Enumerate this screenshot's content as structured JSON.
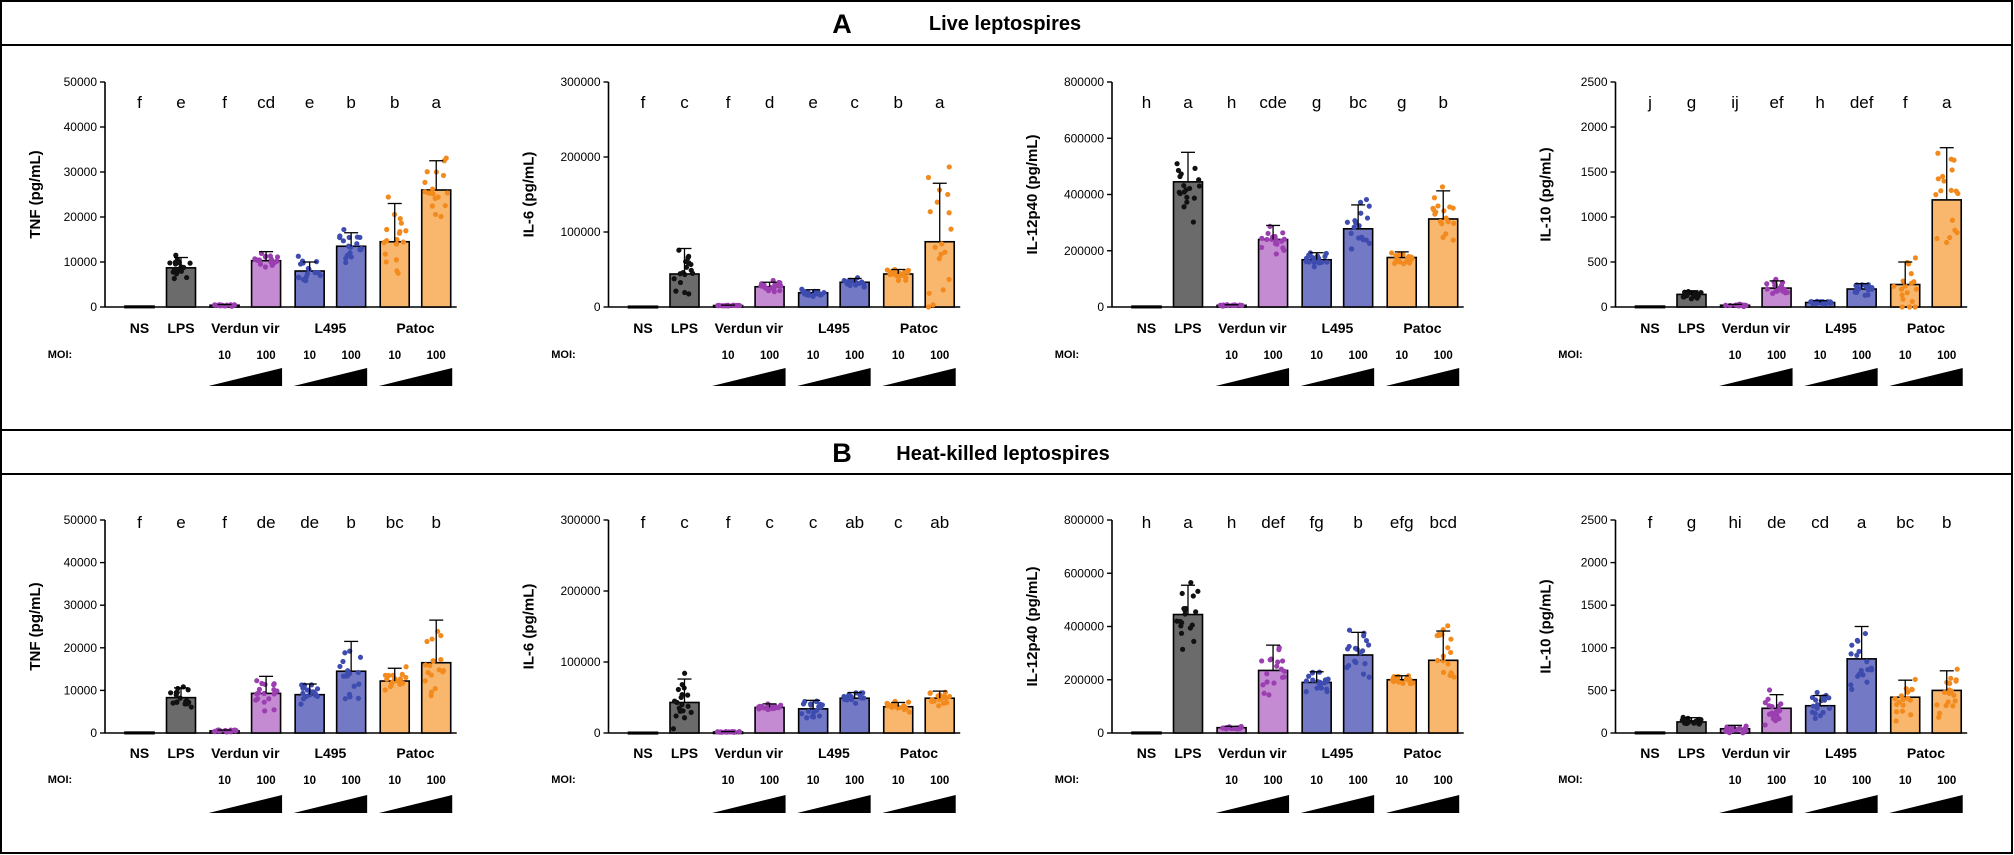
{
  "panels": [
    {
      "letter": "A",
      "title": "Live leptospires"
    },
    {
      "letter": "B",
      "title": "Heat-killed leptospires"
    }
  ],
  "moi_axis": {
    "label": "MOI:",
    "low": "10",
    "high": "100"
  },
  "colors": {
    "NS": "#b8b8b8",
    "LPS": "#6b6b6b",
    "Verdun vir": "#c48ad2",
    "L495": "#7479c6",
    "Patoc": "#f8b76d",
    "NS_dot": "#a8a8a8",
    "LPS_dot": "#111111",
    "Verdun vir_dot": "#9b3fb0",
    "L495_dot": "#3d4cae",
    "Patoc_dot": "#f28a1e"
  },
  "chart_data": [
    {
      "panel": "A",
      "type": "bar",
      "ylabel": "TNF (pg/mL)",
      "ylim": [
        0,
        50000
      ],
      "yticks": [
        0,
        10000,
        20000,
        30000,
        40000,
        50000
      ],
      "groups": [
        "NS",
        "LPS",
        "Verdun vir",
        "L495",
        "Patoc"
      ],
      "bars": [
        {
          "group": "NS",
          "moi": null,
          "value": 200,
          "sd": 0,
          "letter": "f"
        },
        {
          "group": "LPS",
          "moi": null,
          "value": 8700,
          "sd": 2300,
          "letter": "e"
        },
        {
          "group": "Verdun vir",
          "moi": 10,
          "value": 400,
          "sd": 150,
          "letter": "f"
        },
        {
          "group": "Verdun vir",
          "moi": 100,
          "value": 10300,
          "sd": 2000,
          "letter": "cd"
        },
        {
          "group": "L495",
          "moi": 10,
          "value": 8000,
          "sd": 2000,
          "letter": "e"
        },
        {
          "group": "L495",
          "moi": 100,
          "value": 13500,
          "sd": 3000,
          "letter": "b"
        },
        {
          "group": "Patoc",
          "moi": 10,
          "value": 14500,
          "sd": 8500,
          "letter": "b"
        },
        {
          "group": "Patoc",
          "moi": 100,
          "value": 26000,
          "sd": 6500,
          "letter": "a"
        }
      ]
    },
    {
      "panel": "A",
      "type": "bar",
      "ylabel": "IL-6 (pg/mL)",
      "ylim": [
        0,
        300000
      ],
      "yticks": [
        0,
        100000,
        200000,
        300000
      ],
      "groups": [
        "NS",
        "LPS",
        "Verdun vir",
        "L495",
        "Patoc"
      ],
      "bars": [
        {
          "group": "NS",
          "moi": null,
          "value": 1000,
          "sd": 0,
          "letter": "f"
        },
        {
          "group": "LPS",
          "moi": null,
          "value": 44000,
          "sd": 34000,
          "letter": "c"
        },
        {
          "group": "Verdun vir",
          "moi": 10,
          "value": 2000,
          "sd": 500,
          "letter": "f"
        },
        {
          "group": "Verdun vir",
          "moi": 100,
          "value": 27000,
          "sd": 6000,
          "letter": "d"
        },
        {
          "group": "L495",
          "moi": 10,
          "value": 19000,
          "sd": 4000,
          "letter": "e"
        },
        {
          "group": "L495",
          "moi": 100,
          "value": 33000,
          "sd": 5000,
          "letter": "c"
        },
        {
          "group": "Patoc",
          "moi": 10,
          "value": 44000,
          "sd": 6000,
          "letter": "b"
        },
        {
          "group": "Patoc",
          "moi": 100,
          "value": 87000,
          "sd": 78000,
          "letter": "a"
        }
      ]
    },
    {
      "panel": "A",
      "type": "bar",
      "ylabel": "IL-12p40 (pg/mL)",
      "ylim": [
        0,
        800000
      ],
      "yticks": [
        0,
        200000,
        400000,
        600000,
        800000
      ],
      "groups": [
        "NS",
        "LPS",
        "Verdun vir",
        "L495",
        "Patoc"
      ],
      "bars": [
        {
          "group": "NS",
          "moi": null,
          "value": 3000,
          "sd": 0,
          "letter": "h"
        },
        {
          "group": "LPS",
          "moi": null,
          "value": 445000,
          "sd": 105000,
          "letter": "a"
        },
        {
          "group": "Verdun vir",
          "moi": 10,
          "value": 6000,
          "sd": 2000,
          "letter": "h"
        },
        {
          "group": "Verdun vir",
          "moi": 100,
          "value": 240000,
          "sd": 50000,
          "letter": "cde"
        },
        {
          "group": "L495",
          "moi": 10,
          "value": 168000,
          "sd": 25000,
          "letter": "g"
        },
        {
          "group": "L495",
          "moi": 100,
          "value": 278000,
          "sd": 85000,
          "letter": "bc"
        },
        {
          "group": "Patoc",
          "moi": 10,
          "value": 176000,
          "sd": 20000,
          "letter": "g"
        },
        {
          "group": "Patoc",
          "moi": 100,
          "value": 313000,
          "sd": 100000,
          "letter": "b"
        }
      ]
    },
    {
      "panel": "A",
      "type": "bar",
      "ylabel": "IL-10 (pg/mL)",
      "ylim": [
        0,
        2500
      ],
      "yticks": [
        0,
        500,
        1000,
        1500,
        2000,
        2500
      ],
      "groups": [
        "NS",
        "LPS",
        "Verdun vir",
        "L495",
        "Patoc"
      ],
      "bars": [
        {
          "group": "NS",
          "moi": null,
          "value": 10,
          "sd": 0,
          "letter": "j"
        },
        {
          "group": "LPS",
          "moi": null,
          "value": 140,
          "sd": 40,
          "letter": "g"
        },
        {
          "group": "Verdun vir",
          "moi": 10,
          "value": 20,
          "sd": 10,
          "letter": "ij"
        },
        {
          "group": "Verdun vir",
          "moi": 100,
          "value": 210,
          "sd": 80,
          "letter": "ef"
        },
        {
          "group": "L495",
          "moi": 10,
          "value": 50,
          "sd": 20,
          "letter": "h"
        },
        {
          "group": "L495",
          "moi": 100,
          "value": 200,
          "sd": 60,
          "letter": "def"
        },
        {
          "group": "Patoc",
          "moi": 10,
          "value": 250,
          "sd": 250,
          "letter": "f"
        },
        {
          "group": "Patoc",
          "moi": 100,
          "value": 1190,
          "sd": 580,
          "letter": "a"
        }
      ]
    },
    {
      "panel": "B",
      "type": "bar",
      "ylabel": "TNF (pg/mL)",
      "ylim": [
        0,
        50000
      ],
      "yticks": [
        0,
        10000,
        20000,
        30000,
        40000,
        50000
      ],
      "groups": [
        "NS",
        "LPS",
        "Verdun vir",
        "L495",
        "Patoc"
      ],
      "bars": [
        {
          "group": "NS",
          "moi": null,
          "value": 200,
          "sd": 0,
          "letter": "f"
        },
        {
          "group": "LPS",
          "moi": null,
          "value": 8300,
          "sd": 2300,
          "letter": "e"
        },
        {
          "group": "Verdun vir",
          "moi": 10,
          "value": 500,
          "sd": 200,
          "letter": "f"
        },
        {
          "group": "Verdun vir",
          "moi": 100,
          "value": 9300,
          "sd": 4000,
          "letter": "de"
        },
        {
          "group": "L495",
          "moi": 10,
          "value": 9000,
          "sd": 2500,
          "letter": "de"
        },
        {
          "group": "L495",
          "moi": 100,
          "value": 14500,
          "sd": 7000,
          "letter": "b"
        },
        {
          "group": "Patoc",
          "moi": 10,
          "value": 12200,
          "sd": 3000,
          "letter": "bc"
        },
        {
          "group": "Patoc",
          "moi": 100,
          "value": 16500,
          "sd": 10000,
          "letter": "b"
        }
      ]
    },
    {
      "panel": "B",
      "type": "bar",
      "ylabel": "IL-6 (pg/mL)",
      "ylim": [
        0,
        300000
      ],
      "yticks": [
        0,
        100000,
        200000,
        300000
      ],
      "groups": [
        "NS",
        "LPS",
        "Verdun vir",
        "L495",
        "Patoc"
      ],
      "bars": [
        {
          "group": "NS",
          "moi": null,
          "value": 1000,
          "sd": 0,
          "letter": "f"
        },
        {
          "group": "LPS",
          "moi": null,
          "value": 43000,
          "sd": 33000,
          "letter": "c"
        },
        {
          "group": "Verdun vir",
          "moi": 10,
          "value": 1500,
          "sd": 500,
          "letter": "f"
        },
        {
          "group": "Verdun vir",
          "moi": 100,
          "value": 36000,
          "sd": 5000,
          "letter": "c"
        },
        {
          "group": "L495",
          "moi": 10,
          "value": 34000,
          "sd": 12000,
          "letter": "c"
        },
        {
          "group": "L495",
          "moi": 100,
          "value": 49000,
          "sd": 8000,
          "letter": "ab"
        },
        {
          "group": "Patoc",
          "moi": 10,
          "value": 37000,
          "sd": 6000,
          "letter": "c"
        },
        {
          "group": "Patoc",
          "moi": 100,
          "value": 49000,
          "sd": 10000,
          "letter": "ab"
        }
      ]
    },
    {
      "panel": "B",
      "type": "bar",
      "ylabel": "IL-12p40 (pg/mL)",
      "ylim": [
        0,
        800000
      ],
      "yticks": [
        0,
        200000,
        400000,
        600000,
        800000
      ],
      "groups": [
        "NS",
        "LPS",
        "Verdun vir",
        "L495",
        "Patoc"
      ],
      "bars": [
        {
          "group": "NS",
          "moi": null,
          "value": 3000,
          "sd": 0,
          "letter": "h"
        },
        {
          "group": "LPS",
          "moi": null,
          "value": 445000,
          "sd": 110000,
          "letter": "a"
        },
        {
          "group": "Verdun vir",
          "moi": 10,
          "value": 20000,
          "sd": 5000,
          "letter": "h"
        },
        {
          "group": "Verdun vir",
          "moi": 100,
          "value": 235000,
          "sd": 95000,
          "letter": "def"
        },
        {
          "group": "L495",
          "moi": 10,
          "value": 190000,
          "sd": 40000,
          "letter": "fg"
        },
        {
          "group": "L495",
          "moi": 100,
          "value": 293000,
          "sd": 85000,
          "letter": "b"
        },
        {
          "group": "Patoc",
          "moi": 10,
          "value": 200000,
          "sd": 15000,
          "letter": "efg"
        },
        {
          "group": "Patoc",
          "moi": 100,
          "value": 273000,
          "sd": 110000,
          "letter": "bcd"
        }
      ]
    },
    {
      "panel": "B",
      "type": "bar",
      "ylabel": "IL-10 (pg/mL)",
      "ylim": [
        0,
        2500
      ],
      "yticks": [
        0,
        500,
        1000,
        1500,
        2000,
        2500
      ],
      "groups": [
        "NS",
        "LPS",
        "Verdun vir",
        "L495",
        "Patoc"
      ],
      "bars": [
        {
          "group": "NS",
          "moi": null,
          "value": 10,
          "sd": 0,
          "letter": "f"
        },
        {
          "group": "LPS",
          "moi": null,
          "value": 130,
          "sd": 50,
          "letter": "g"
        },
        {
          "group": "Verdun vir",
          "moi": 10,
          "value": 50,
          "sd": 40,
          "letter": "hi"
        },
        {
          "group": "Verdun vir",
          "moi": 100,
          "value": 290,
          "sd": 160,
          "letter": "de"
        },
        {
          "group": "L495",
          "moi": 10,
          "value": 320,
          "sd": 120,
          "letter": "cd"
        },
        {
          "group": "L495",
          "moi": 100,
          "value": 870,
          "sd": 380,
          "letter": "a"
        },
        {
          "group": "Patoc",
          "moi": 10,
          "value": 420,
          "sd": 200,
          "letter": "bc"
        },
        {
          "group": "Patoc",
          "moi": 100,
          "value": 500,
          "sd": 230,
          "letter": "b"
        }
      ]
    }
  ]
}
